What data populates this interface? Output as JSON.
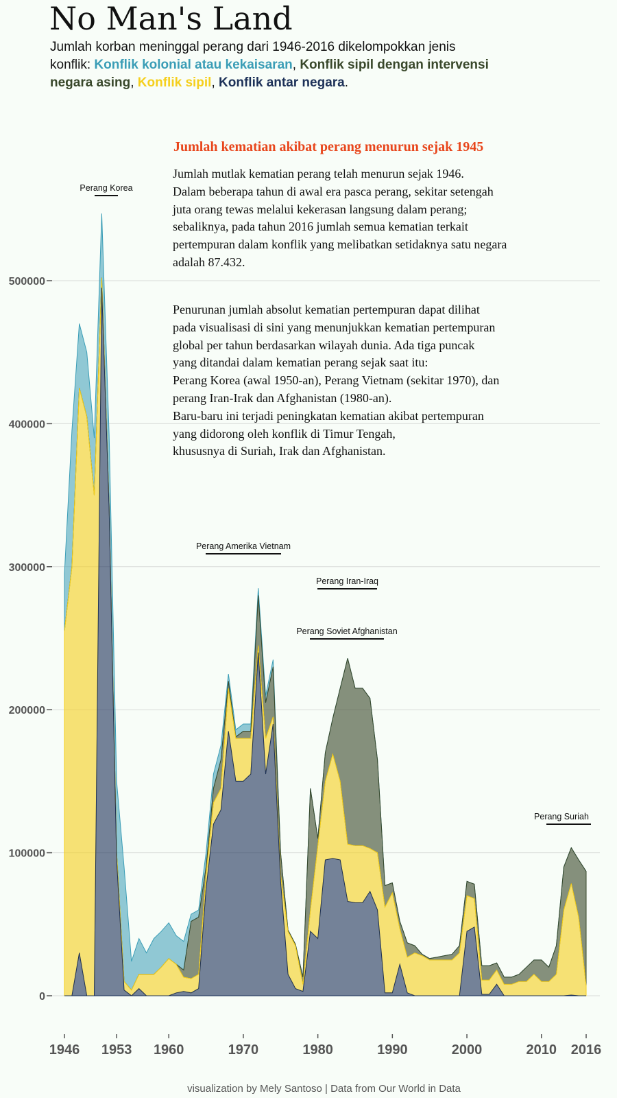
{
  "header": {
    "title": "No Man's Land",
    "subtitle_intro": "Jumlah korban meninggal perang dari 1946-2016  dikelompokkan jenis konflik: ",
    "legend": [
      {
        "label": "Konflik kolonial atau kekaisaran",
        "color": "#3a9db6"
      },
      {
        "label": "Konflik sipil dengan intervensi negara asing",
        "color": "#38472a"
      },
      {
        "label": "Konflik sipil",
        "color": "#f5cf1d"
      },
      {
        "label": "Konflik antar negara",
        "color": "#1d3158"
      }
    ],
    "sep1": ", ",
    "sep2": ", ",
    "sep3": ", ",
    "end": "."
  },
  "note": {
    "headline": "Jumlah kematian akibat perang menurun sejak 1945",
    "para1": [
      "Jumlah mutlak kematian perang telah menurun sejak 1946.",
      "Dalam beberapa tahun di awal era pasca perang, sekitar setengah",
      "juta orang tewas melalui kekerasan langsung dalam perang;",
      "sebaliknya, pada tahun 2016 jumlah semua kematian terkait",
      "pertempuran dalam konflik yang melibatkan setidaknya satu negara",
      "adalah 87.432."
    ],
    "para2": [
      "Penurunan jumlah absolut kematian pertempuran dapat dilihat",
      "pada visualisasi di sini yang menunjukkan kematian pertempuran",
      "global per tahun berdasarkan wilayah dunia. Ada tiga puncak",
      "yang ditandai dalam kematian perang sejak saat itu:",
      "Perang Korea (awal 1950-an), Perang Vietnam (sekitar 1970), dan",
      "perang Iran-Irak dan Afghanistan (1980-an).",
      "Baru-baru ini terjadi peningkatan kematian akibat pertempuran",
      "yang didorong oleh konflik di Timur Tengah,",
      "khususnya di Suriah, Irak dan Afghanistan."
    ]
  },
  "credit": "visualization by Mely Santoso | Data from Our World in Data",
  "chart_data": {
    "type": "area",
    "stacked": true,
    "xlim": [
      1946,
      2016
    ],
    "ylim": [
      0,
      500000
    ],
    "x_ticks": [
      1946,
      1953,
      1960,
      1970,
      1980,
      1990,
      2000,
      2010,
      2016
    ],
    "y_ticks": [
      0,
      100000,
      200000,
      300000,
      400000,
      500000
    ],
    "grid": true,
    "annotations": [
      {
        "text": "Perang Korea",
        "x": 1950.5
      },
      {
        "text": "Perang Amerika Vietnam",
        "x": 1969.5
      },
      {
        "text": "Perang Iran-Iraq",
        "x": 1981.7
      },
      {
        "text": "Perang Soviet Afghanistan",
        "x": 1983.5
      },
      {
        "text": "Perang Suriah",
        "x": 2014
      }
    ],
    "x": [
      1946,
      1947,
      1948,
      1949,
      1950,
      1951,
      1952,
      1953,
      1954,
      1955,
      1956,
      1957,
      1958,
      1959,
      1960,
      1961,
      1962,
      1963,
      1964,
      1965,
      1966,
      1967,
      1968,
      1969,
      1970,
      1971,
      1972,
      1973,
      1974,
      1975,
      1976,
      1977,
      1978,
      1979,
      1980,
      1981,
      1982,
      1983,
      1984,
      1985,
      1986,
      1987,
      1988,
      1989,
      1990,
      1991,
      1992,
      1993,
      1994,
      1995,
      1996,
      1997,
      1998,
      1999,
      2000,
      2001,
      2002,
      2003,
      2004,
      2005,
      2006,
      2007,
      2008,
      2009,
      2010,
      2011,
      2012,
      2013,
      2014,
      2015,
      2016
    ],
    "series": [
      {
        "name": "Konflik antar negara",
        "color": "#1d3158",
        "values": [
          0,
          0,
          30000,
          0,
          0,
          495000,
          340000,
          95000,
          4000,
          0,
          5000,
          0,
          0,
          0,
          0,
          2000,
          3000,
          2000,
          5000,
          75000,
          120000,
          130000,
          185000,
          150000,
          150000,
          155000,
          240000,
          155000,
          190000,
          80000,
          15000,
          5000,
          3000,
          45000,
          40000,
          95000,
          96000,
          95000,
          66000,
          65000,
          65000,
          73000,
          60000,
          2000,
          2000,
          22000,
          2000,
          0,
          0,
          0,
          0,
          0,
          0,
          0,
          45000,
          48000,
          1000,
          1000,
          8000,
          0,
          0,
          0,
          0,
          0,
          0,
          0,
          0,
          0,
          500,
          0,
          0
        ]
      },
      {
        "name": "Konflik sipil",
        "color": "#f5cf1d",
        "values": [
          255000,
          300000,
          395000,
          405000,
          350000,
          7000,
          2000,
          5000,
          6000,
          4000,
          10000,
          15000,
          15000,
          20000,
          26000,
          20000,
          10000,
          10000,
          10000,
          10000,
          15000,
          15000,
          30000,
          30000,
          30000,
          25000,
          5000,
          25000,
          5000,
          5000,
          30000,
          30000,
          5000,
          15000,
          65000,
          55000,
          73000,
          55000,
          40000,
          40000,
          40000,
          30000,
          40000,
          60000,
          70000,
          25000,
          25000,
          30000,
          28000,
          25000,
          25000,
          25000,
          25000,
          30000,
          25000,
          20000,
          10000,
          10000,
          10000,
          8000,
          8000,
          10000,
          10000,
          15000,
          10000,
          10000,
          15000,
          60000,
          78000,
          55000,
          7000
        ]
      },
      {
        "name": "Konflik sipil dengan intervensi negara asing",
        "color": "#38472a",
        "values": [
          0,
          0,
          0,
          0,
          0,
          0,
          0,
          0,
          0,
          0,
          0,
          0,
          0,
          0,
          0,
          0,
          5000,
          40000,
          40000,
          5000,
          10000,
          20000,
          5000,
          1000,
          5000,
          5000,
          35000,
          25000,
          35000,
          15000,
          1000,
          1000,
          5000,
          85000,
          5000,
          20000,
          25000,
          65000,
          130000,
          110000,
          110000,
          105000,
          65000,
          15000,
          7000,
          5000,
          10000,
          5000,
          1000,
          1000,
          2000,
          3000,
          4000,
          5000,
          10000,
          10000,
          10000,
          10000,
          5000,
          5000,
          5000,
          5000,
          10000,
          10000,
          15000,
          10000,
          20000,
          30000,
          25000,
          40000,
          80000
        ]
      },
      {
        "name": "Konflik kolonial atau kekaisaran",
        "color": "#3a9db6",
        "values": [
          40000,
          95000,
          45000,
          45000,
          40000,
          45000,
          50000,
          50000,
          80000,
          20000,
          25000,
          15000,
          25000,
          25000,
          25000,
          20000,
          20000,
          5000,
          5000,
          10000,
          10000,
          10000,
          5000,
          5000,
          5000,
          5000,
          5000,
          5000,
          5000,
          0,
          0,
          0,
          0,
          0,
          0,
          0,
          0,
          0,
          0,
          0,
          0,
          0,
          0,
          0,
          0,
          0,
          0,
          0,
          0,
          0,
          0,
          0,
          0,
          0,
          0,
          0,
          0,
          0,
          0,
          0,
          0,
          0,
          0,
          0,
          0,
          0,
          0,
          0,
          0,
          0,
          0
        ]
      }
    ]
  }
}
